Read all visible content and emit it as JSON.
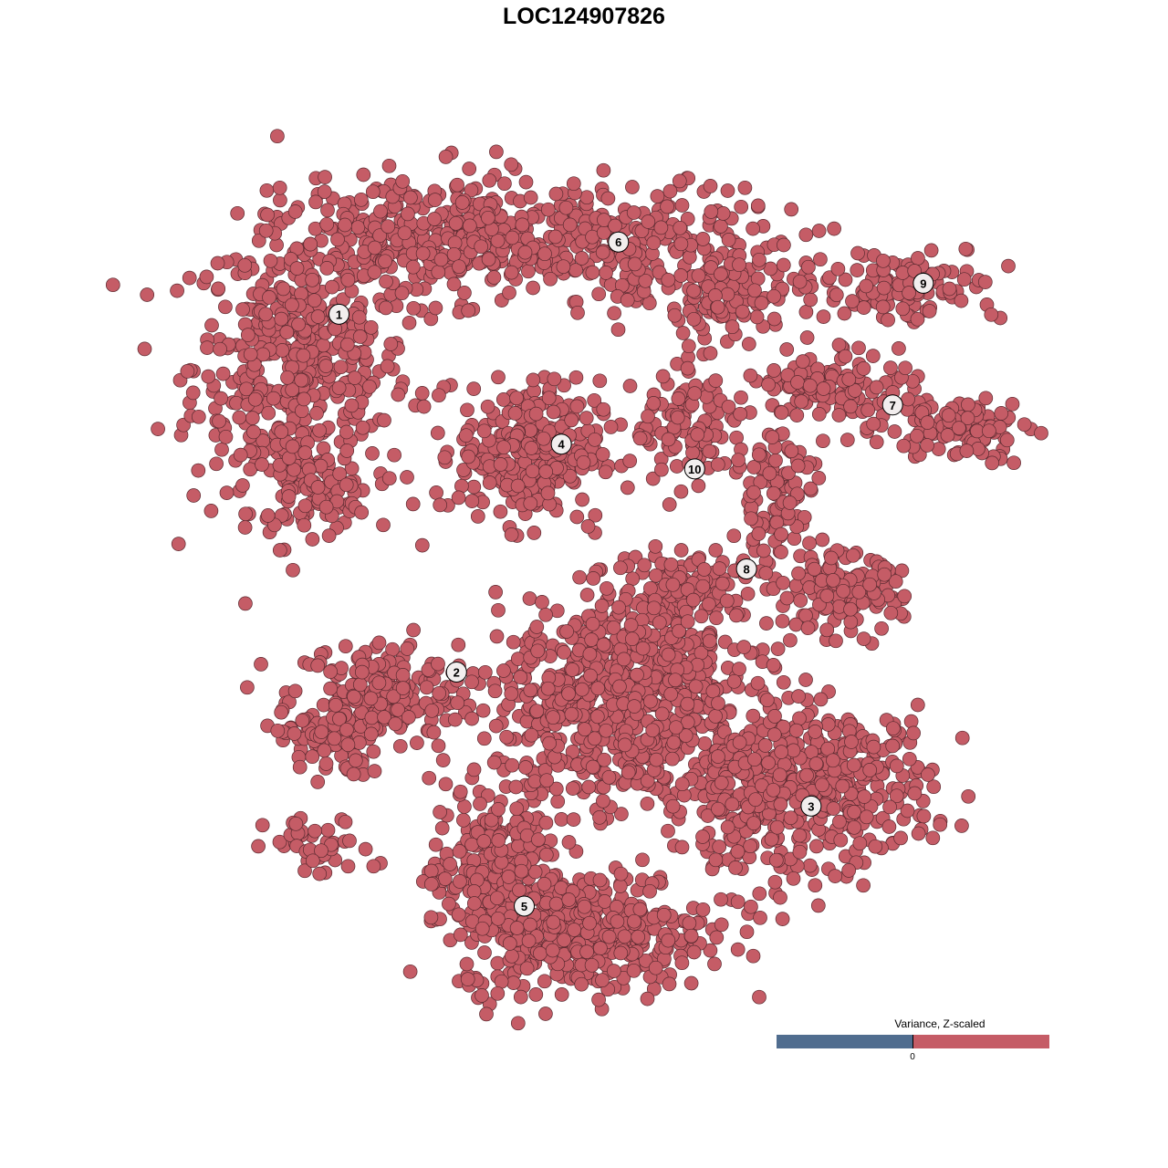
{
  "chart_data": {
    "type": "scatter",
    "title": "LOC124907826",
    "xlabel": "",
    "ylabel": "",
    "grid": false,
    "axes_visible": false,
    "note_points": "embedding point cloud summarized per cluster as gaussian components (center, spread, count)",
    "xlim": [
      -40,
      40
    ],
    "ylim": [
      -40,
      40
    ],
    "point_color": "#c55c66",
    "point_edge_color": "#5a2a30",
    "clusters": [
      {
        "label": "1",
        "label_pos": [
          -25.3,
          25.9
        ],
        "components": [
          {
            "center": [
              -28.9,
              20.9
            ],
            "spread": [
              6.0,
              8.0
            ],
            "n": 500
          },
          {
            "center": [
              -28.0,
              8.6
            ],
            "spread": [
              3.4,
              2.2
            ],
            "n": 80
          }
        ]
      },
      {
        "label": "2",
        "label_pos": [
          -14.2,
          -8.8
        ],
        "components": [
          {
            "center": [
              -21.1,
              -10.9
            ],
            "spread": [
              5.2,
              3.1
            ],
            "n": 200
          },
          {
            "center": [
              -26.3,
              -15.3
            ],
            "spread": [
              2.6,
              2.2
            ],
            "n": 80
          },
          {
            "center": [
              -27.2,
              -25.9
            ],
            "spread": [
              3.0,
              1.8
            ],
            "n": 40
          }
        ]
      },
      {
        "label": "3",
        "label_pos": [
          19.3,
          -21.8
        ],
        "components": [
          {
            "center": [
              22.0,
              -19.7
            ],
            "spread": [
              5.2,
              4.4
            ],
            "n": 300
          },
          {
            "center": [
              13.4,
              -21.5
            ],
            "spread": [
              3.4,
              5.3
            ],
            "n": 200
          }
        ]
      },
      {
        "label": "4",
        "label_pos": [
          -4.3,
          13.3
        ],
        "components": [
          {
            "center": [
              -7.3,
              12.6
            ],
            "spread": [
              3.9,
              4.0
            ],
            "n": 300
          }
        ]
      },
      {
        "label": "5",
        "label_pos": [
          -7.8,
          -31.5
        ],
        "components": [
          {
            "center": [
              -2.2,
              -33.9
            ],
            "spread": [
              6.9,
              3.5
            ],
            "n": 400
          },
          {
            "center": [
              -10.8,
              -28.6
            ],
            "spread": [
              3.4,
              5.3
            ],
            "n": 250
          },
          {
            "center": [
              1.3,
              -12.7
            ],
            "spread": [
              6.9,
              6.2
            ],
            "n": 600
          },
          {
            "center": [
              4.7,
              -5.6
            ],
            "spread": [
              5.2,
              2.7
            ],
            "n": 150
          }
        ]
      },
      {
        "label": "6",
        "label_pos": [
          1.1,
          32.9
        ],
        "components": [
          {
            "center": [
              -15.9,
              33.4
            ],
            "spread": [
              7.8,
              3.5
            ],
            "n": 350
          },
          {
            "center": [
              3.0,
              32.5
            ],
            "spread": [
              7.8,
              3.5
            ],
            "n": 250
          },
          {
            "center": [
              11.6,
              27.2
            ],
            "spread": [
              3.4,
              2.2
            ],
            "n": 80
          }
        ]
      },
      {
        "label": "7",
        "label_pos": [
          27.0,
          17.1
        ],
        "components": [
          {
            "center": [
              22.0,
              19.2
            ],
            "spread": [
              4.3,
              2.2
            ],
            "n": 120
          },
          {
            "center": [
              33.2,
              14.8
            ],
            "spread": [
              3.9,
              1.8
            ],
            "n": 100
          }
        ]
      },
      {
        "label": "8",
        "label_pos": [
          13.2,
          1.2
        ],
        "components": [
          {
            "center": [
              15.9,
              8.6
            ],
            "spread": [
              2.2,
              4.4
            ],
            "n": 100
          },
          {
            "center": [
              22.0,
              -1.2
            ],
            "spread": [
              3.4,
              2.2
            ],
            "n": 150
          },
          {
            "center": [
              8.2,
              -0.3
            ],
            "spread": [
              4.3,
              2.2
            ],
            "n": 100
          }
        ]
      },
      {
        "label": "9",
        "label_pos": [
          29.9,
          28.9
        ],
        "components": [
          {
            "center": [
              27.2,
              28.9
            ],
            "spread": [
              6.0,
              2.2
            ],
            "n": 120
          }
        ]
      },
      {
        "label": "10",
        "label_pos": [
          8.3,
          10.9
        ],
        "components": [
          {
            "center": [
              8.2,
              14.8
            ],
            "spread": [
              3.4,
              3.1
            ],
            "n": 120
          }
        ]
      }
    ],
    "legend": {
      "title": "Variance, Z-scaled",
      "tick": "0",
      "low_color": "#506d8f",
      "high_color": "#c55c66",
      "placement": "bottom-right"
    }
  }
}
